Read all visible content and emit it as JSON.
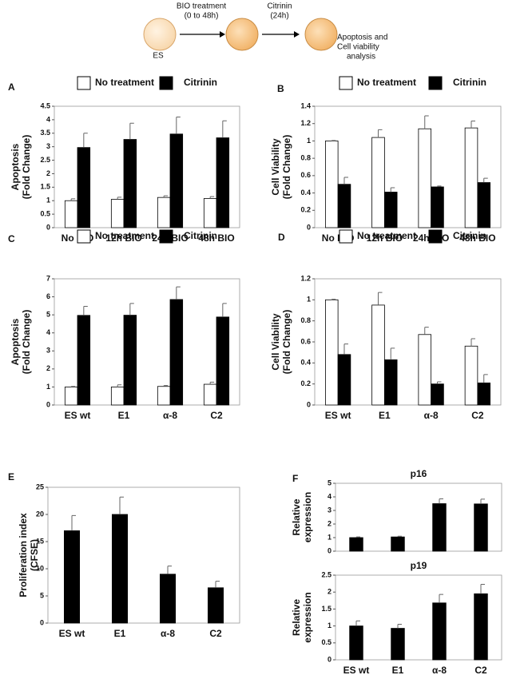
{
  "diagram": {
    "step1": [
      "BIO treatment",
      "(0 to 48h)"
    ],
    "start": "ES",
    "step2": [
      "Citrinin",
      "(24h)"
    ],
    "end": [
      "Apoptosis and",
      "Cell viability",
      "analysis"
    ]
  },
  "chart_data": [
    {
      "type": "bar",
      "panel": "A",
      "ylabel": [
        "Apoptosis",
        "(Fold Change)"
      ],
      "categories": [
        "No BIO",
        "12h BIO",
        "24h BIO",
        "48h BIO"
      ],
      "series": [
        {
          "name": "No treatment",
          "color": "#ffffff",
          "values": [
            1,
            1.05,
            1.12,
            1.08
          ],
          "errors": [
            0.07,
            0.08,
            0.06,
            0.07
          ]
        },
        {
          "name": "Citrinin",
          "color": "#000000",
          "values": [
            2.97,
            3.27,
            3.47,
            3.33
          ],
          "errors": [
            0.53,
            0.6,
            0.63,
            0.63
          ]
        }
      ],
      "ylim": [
        0,
        4.5
      ],
      "yticks": [
        0,
        0.5,
        1,
        1.5,
        2,
        2.5,
        3,
        3.5,
        4,
        4.5
      ]
    },
    {
      "type": "bar",
      "panel": "B",
      "ylabel": [
        "Cell Viability",
        "(Fold Change)"
      ],
      "categories": [
        "No BIO",
        "12h BIO",
        "24h BIO",
        "48h BIO"
      ],
      "series": [
        {
          "name": "No treatment",
          "color": "#ffffff",
          "values": [
            1,
            1.04,
            1.14,
            1.15
          ],
          "errors": [
            0.005,
            0.09,
            0.15,
            0.08
          ]
        },
        {
          "name": "Citrinin",
          "color": "#000000",
          "values": [
            0.5,
            0.41,
            0.47,
            0.52
          ],
          "errors": [
            0.08,
            0.05,
            0.01,
            0.05
          ]
        }
      ],
      "ylim": [
        0,
        1.4
      ],
      "yticks": [
        0,
        0.2,
        0.4,
        0.6,
        0.8,
        1,
        1.2,
        1.4
      ]
    },
    {
      "type": "bar",
      "panel": "C",
      "ylabel": [
        "Apoptosis",
        "(Fold Change)"
      ],
      "categories": [
        "ES wt",
        "E1",
        "α-8",
        "C2"
      ],
      "series": [
        {
          "name": "No treatment",
          "color": "#ffffff",
          "values": [
            1,
            1,
            1.03,
            1.15
          ],
          "errors": [
            0.03,
            0.12,
            0.05,
            0.12
          ]
        },
        {
          "name": "Citrinin",
          "color": "#000000",
          "values": [
            4.97,
            4.98,
            5.85,
            4.88
          ],
          "errors": [
            0.5,
            0.65,
            0.7,
            0.75
          ]
        }
      ],
      "ylim": [
        0,
        7
      ],
      "yticks": [
        0,
        1,
        2,
        3,
        4,
        5,
        6,
        7
      ]
    },
    {
      "type": "bar",
      "panel": "D",
      "ylabel": [
        "Cell Viability",
        "(Fold Change)"
      ],
      "categories": [
        "ES wt",
        "E1",
        "α-8",
        "C2"
      ],
      "series": [
        {
          "name": "No treatment",
          "color": "#ffffff",
          "values": [
            1,
            0.95,
            0.67,
            0.56
          ],
          "errors": [
            0.005,
            0.12,
            0.07,
            0.07
          ]
        },
        {
          "name": "Citrinin",
          "color": "#000000",
          "values": [
            0.48,
            0.43,
            0.2,
            0.21
          ],
          "errors": [
            0.1,
            0.11,
            0.02,
            0.08
          ]
        }
      ],
      "ylim": [
        0,
        1.2
      ],
      "yticks": [
        0,
        0.2,
        0.4,
        0.6,
        0.8,
        1,
        1.2
      ]
    },
    {
      "type": "bar",
      "panel": "E",
      "ylabel": [
        "Proliferation index",
        "(CFSE)"
      ],
      "categories": [
        "ES wt",
        "E1",
        "α-8",
        "C2"
      ],
      "color": "#000000",
      "values": [
        17,
        20,
        9,
        6.5
      ],
      "errors": [
        2.8,
        3.2,
        1.5,
        1.2
      ],
      "ylim": [
        0,
        25
      ],
      "yticks": [
        0,
        5,
        10,
        15,
        20,
        25
      ]
    },
    {
      "type": "bar",
      "panel": "F",
      "title": "p16",
      "ylabel": [
        "Relative",
        "expression"
      ],
      "color": "#000000",
      "values": [
        1,
        1.05,
        3.5,
        3.48
      ],
      "errors": [
        0.05,
        0.05,
        0.35,
        0.35
      ],
      "ylim": [
        0,
        5
      ],
      "yticks": [
        0,
        1,
        2,
        3,
        4,
        5
      ]
    },
    {
      "type": "bar",
      "title": "p19",
      "ylabel": [
        "Relative",
        "expression"
      ],
      "categories": [
        "ES wt",
        "E1",
        "α-8",
        "C2"
      ],
      "color": "#000000",
      "values": [
        1,
        0.93,
        1.68,
        1.95
      ],
      "errors": [
        0.15,
        0.12,
        0.25,
        0.28
      ],
      "ylim": [
        0,
        2.5
      ],
      "yticks": [
        0,
        0.5,
        1,
        1.5,
        2,
        2.5
      ]
    }
  ]
}
